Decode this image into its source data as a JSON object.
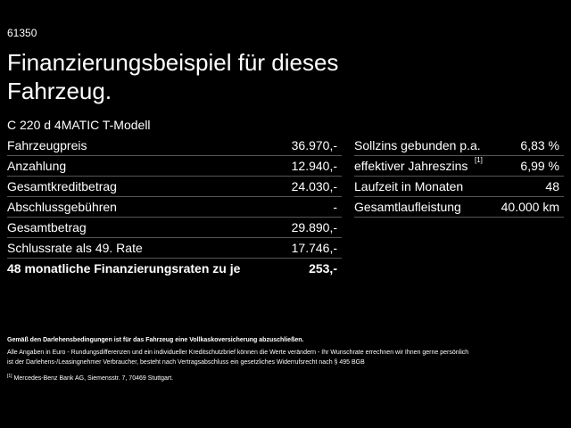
{
  "header": {
    "id": "61350",
    "title_lines": [
      "Finanzierungsbeispiel für dieses",
      "Fahrzeug."
    ],
    "model": "C 220 d 4MATIC T-Modell"
  },
  "left_table": {
    "rows": [
      [
        "Fahrzeugpreis",
        "36.970,-"
      ],
      [
        "Anzahlung",
        "12.940,-"
      ],
      [
        "Gesamtkreditbetrag",
        "24.030,-"
      ],
      [
        "Abschlussgebühren",
        "-"
      ],
      [
        "Gesamtbetrag",
        "29.890,-"
      ],
      [
        "Schlussrate als 49. Rate",
        "17.746,-"
      ],
      [
        "48 monatliche Finanzierungsraten zu je",
        "253,-"
      ]
    ]
  },
  "right_table": {
    "rows": [
      [
        "Sollzins gebunden p.a.",
        "6,83 %"
      ],
      [
        "effektiver Jahreszins",
        "6,99 %"
      ],
      [
        "Laufzeit in Monaten",
        "48"
      ],
      [
        "Gesamtlaufleistung",
        "40.000 km"
      ]
    ],
    "note_marker": "[1]"
  },
  "footer": {
    "bold_note": "Gemäß den Darlehensbedingungen ist für das Fahrzeug eine Vollkaskoversicherung abzuschließen.",
    "lines": [
      "Alle Angaben in Euro - Rundungsdifferenzen und ein individueller Kreditschutzbrief können die Werte verändern - Ihr Wunschrate errechnen wir Ihnen gerne persönlich",
      "ist der Darlehens-/Leasingnehmer Verbraucher, besteht nach Vertragsabschluss ein gesetzliches Widerrufsrecht nach § 495 BGB"
    ],
    "note_marker": "[1]",
    "note_text": "Mercedes-Benz Bank AG, Siemensstr. 7, 70469 Stuttgart."
  }
}
